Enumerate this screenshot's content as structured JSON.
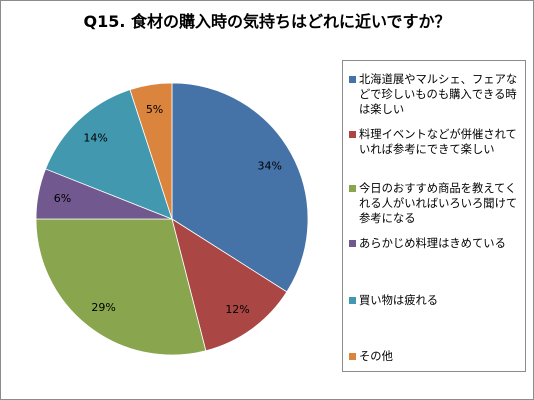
{
  "chart_data": {
    "type": "pie",
    "title": "Q15. 食材の購入時の気持ちはどれに近いですか？",
    "legend_position": "right",
    "slices": [
      {
        "label": "北海道展やマルシェ、フェアなどで珍しいものも購入できる時は楽しい",
        "value": 34,
        "value_label": "34%",
        "color": "#4572A7"
      },
      {
        "label": "料理イベントなどが併催されていれば参考にできて楽しい",
        "value": 12,
        "value_label": "12%",
        "color": "#AA4643"
      },
      {
        "label": "今日のおすすめ商品を教えてくれる人がいればいろいろ聞けて参考になる",
        "value": 29,
        "value_label": "29%",
        "color": "#89A54E"
      },
      {
        "label": "あらかじめ料理はきめている",
        "value": 6,
        "value_label": "6%",
        "color": "#71588F"
      },
      {
        "label": "買い物は疲れる",
        "value": 14,
        "value_label": "14%",
        "color": "#4198AF"
      },
      {
        "label": "その他",
        "value": 5,
        "value_label": "5%",
        "color": "#DB843D"
      }
    ]
  }
}
